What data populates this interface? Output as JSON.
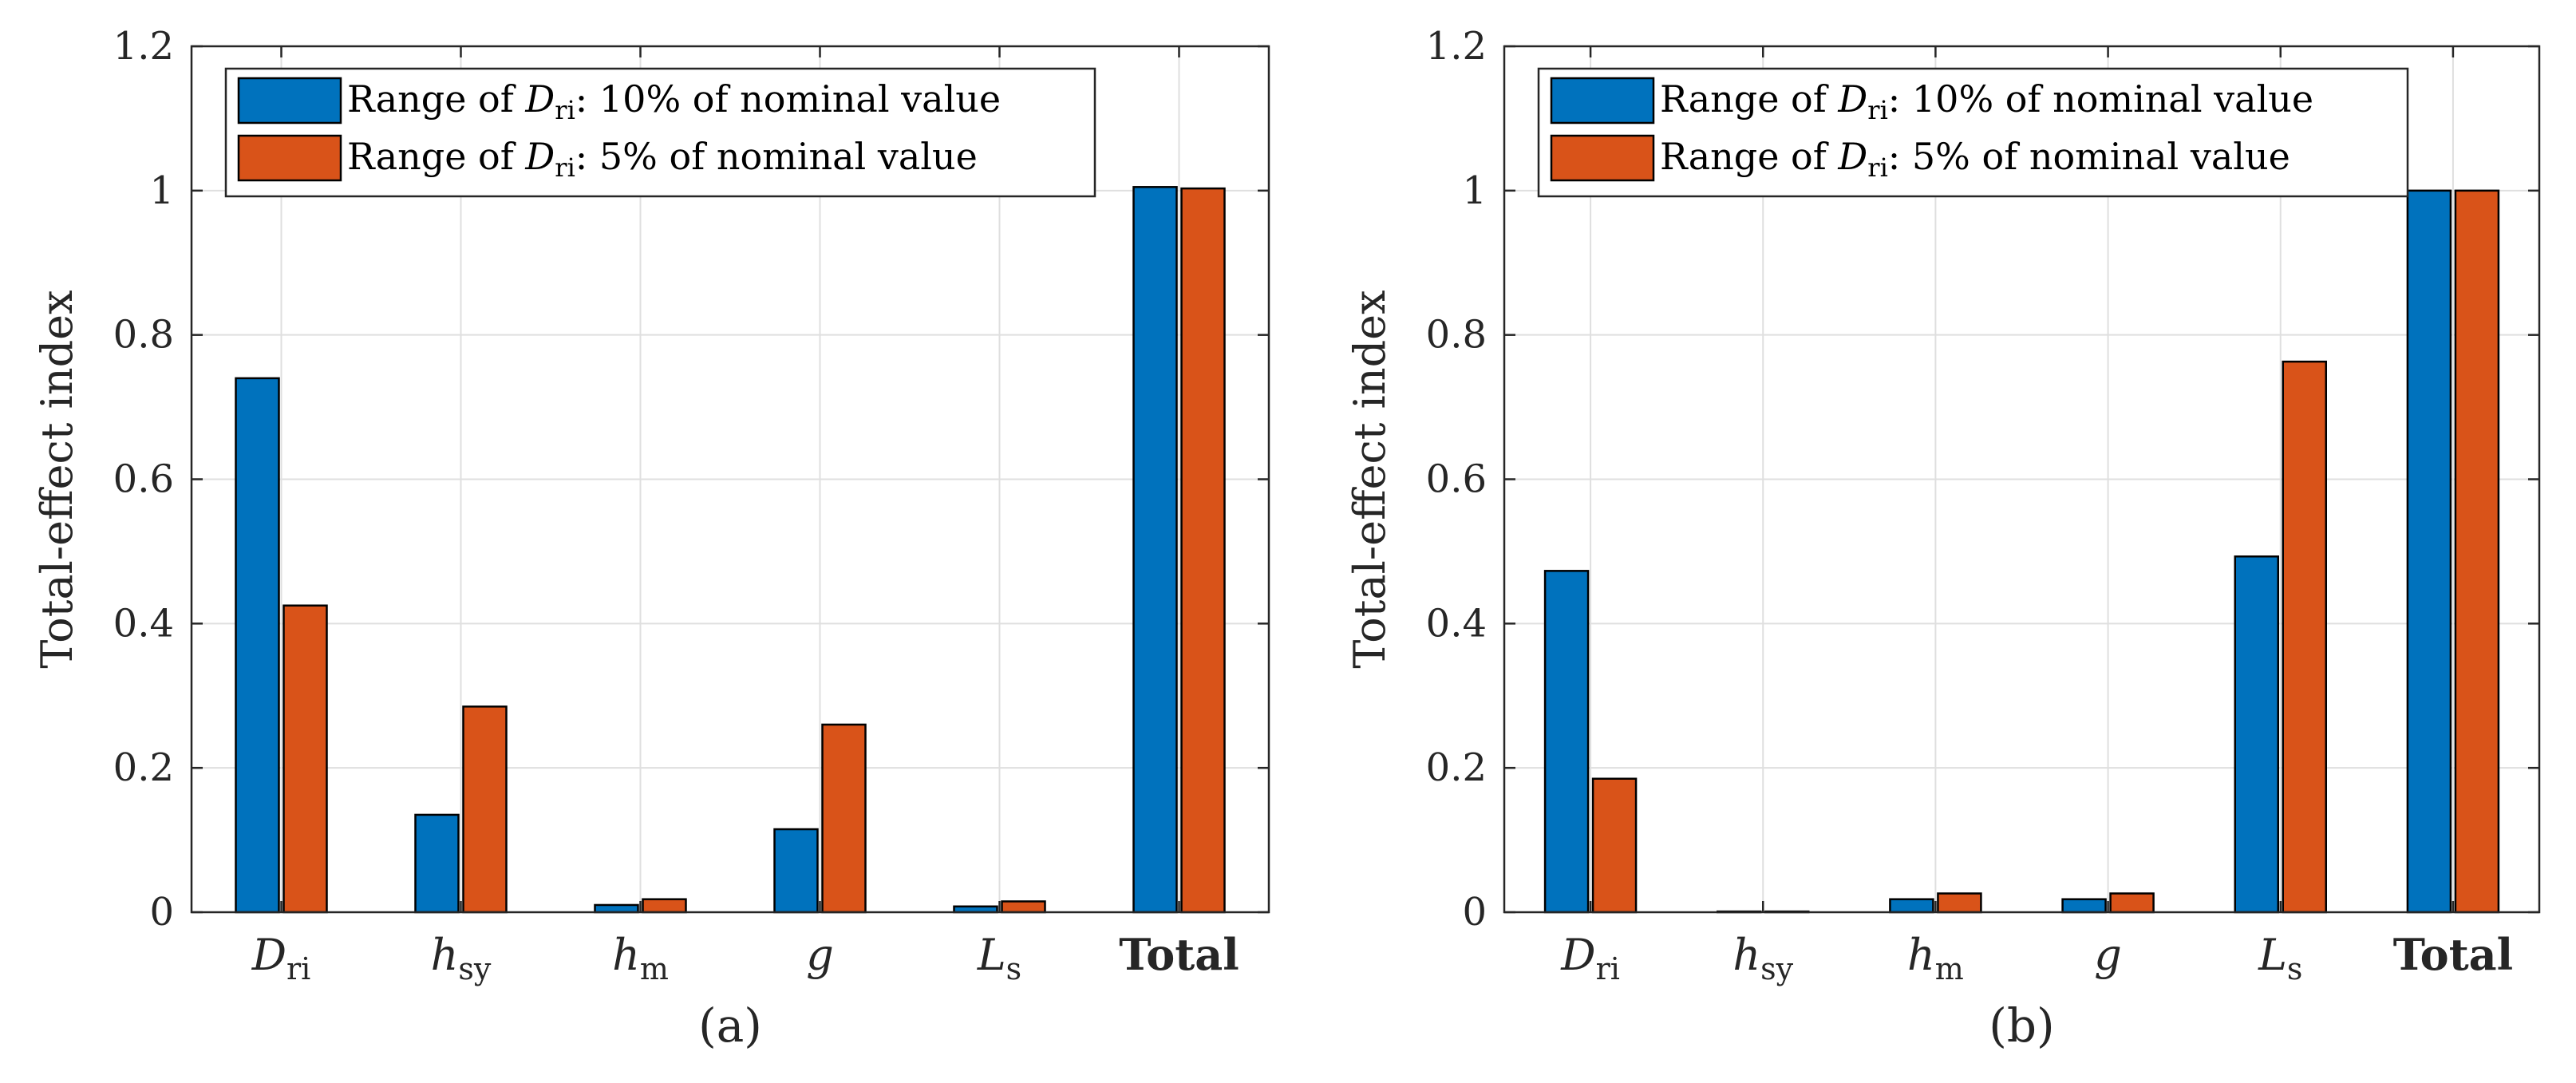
{
  "colors": {
    "series1": "#0072BD",
    "series2": "#D95319",
    "grid": "#DFDFDF",
    "axis": "#262626"
  },
  "chart_data": [
    {
      "type": "bar",
      "panel_label": "(a)",
      "ylabel": "Total-effect index",
      "ylim": [
        0,
        1.2
      ],
      "yticks": [
        "0",
        "0.2",
        "0.4",
        "0.6",
        "0.8",
        "1",
        "1.2"
      ],
      "grid": true,
      "legend_position": "top-left",
      "categories": [
        {
          "base": "D",
          "sub": "ri",
          "italic": true,
          "bold": false
        },
        {
          "base": "h",
          "sub": "sy",
          "italic": true,
          "bold": false
        },
        {
          "base": "h",
          "sub": "m",
          "italic": true,
          "bold": false
        },
        {
          "base": "g",
          "sub": "",
          "italic": true,
          "bold": false
        },
        {
          "base": "L",
          "sub": "s",
          "italic": true,
          "bold": false
        },
        {
          "base": "Total",
          "sub": "",
          "italic": false,
          "bold": true
        }
      ],
      "series": [
        {
          "name": "Range of Dri: 10% of nominal value",
          "legend": {
            "pre": "Range of ",
            "var": "D",
            "sub": "ri",
            "post": ": 10% of nominal value"
          },
          "values": [
            0.74,
            0.135,
            0.01,
            0.115,
            0.008,
            1.005
          ]
        },
        {
          "name": "Range of Dri: 5% of nominal value",
          "legend": {
            "pre": "Range of ",
            "var": "D",
            "sub": "ri",
            "post": ": 5% of nominal value"
          },
          "values": [
            0.425,
            0.285,
            0.018,
            0.26,
            0.015,
            1.003
          ]
        }
      ]
    },
    {
      "type": "bar",
      "panel_label": "(b)",
      "ylabel": "Total-effect index",
      "ylim": [
        0,
        1.2
      ],
      "yticks": [
        "0",
        "0.2",
        "0.4",
        "0.6",
        "0.8",
        "1",
        "1.2"
      ],
      "grid": true,
      "legend_position": "top-left",
      "categories": [
        {
          "base": "D",
          "sub": "ri",
          "italic": true,
          "bold": false
        },
        {
          "base": "h",
          "sub": "sy",
          "italic": true,
          "bold": false
        },
        {
          "base": "h",
          "sub": "m",
          "italic": true,
          "bold": false
        },
        {
          "base": "g",
          "sub": "",
          "italic": true,
          "bold": false
        },
        {
          "base": "L",
          "sub": "s",
          "italic": true,
          "bold": false
        },
        {
          "base": "Total",
          "sub": "",
          "italic": false,
          "bold": true
        }
      ],
      "series": [
        {
          "name": "Range of Dri: 10% of nominal value",
          "legend": {
            "pre": "Range of ",
            "var": "D",
            "sub": "ri",
            "post": ": 10% of nominal value"
          },
          "values": [
            0.473,
            0.001,
            0.018,
            0.018,
            0.493,
            1.0
          ]
        },
        {
          "name": "Range of Dri: 5% of nominal value",
          "legend": {
            "pre": "Range of ",
            "var": "D",
            "sub": "ri",
            "post": ": 5% of nominal value"
          },
          "values": [
            0.185,
            0.001,
            0.026,
            0.026,
            0.763,
            1.0
          ]
        }
      ]
    }
  ]
}
